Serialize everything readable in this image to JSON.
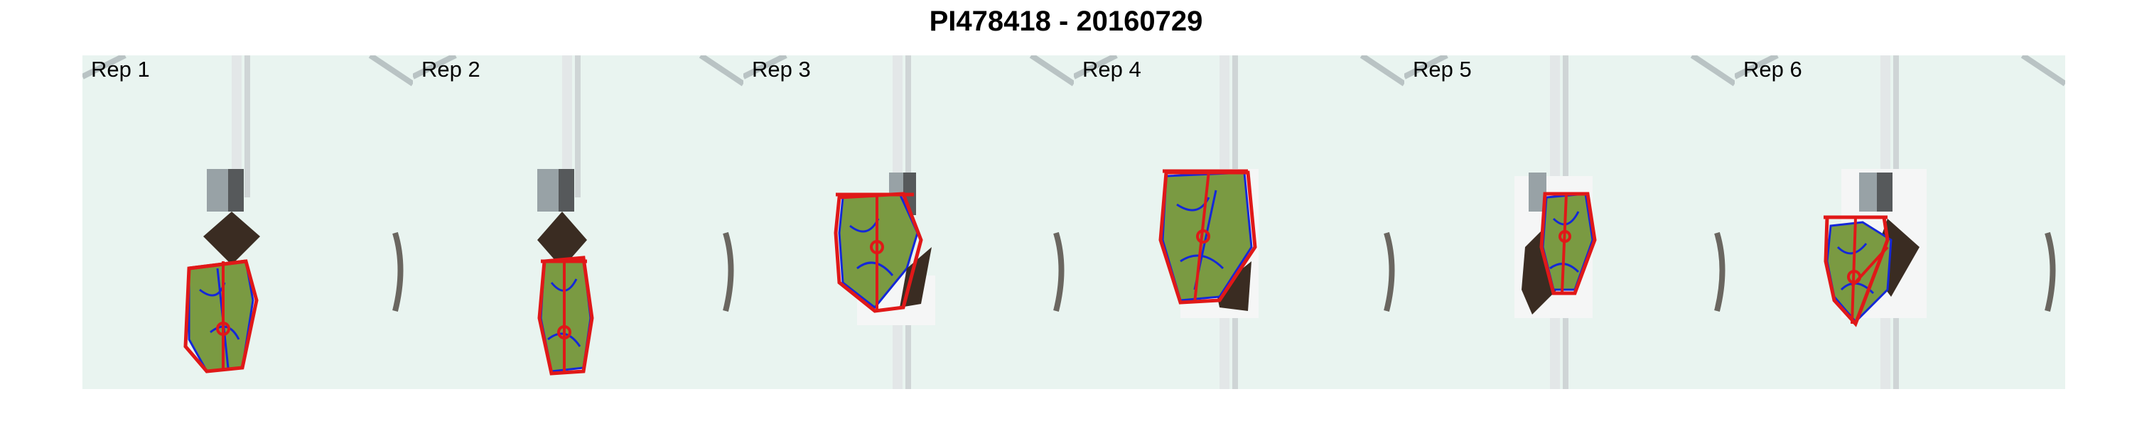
{
  "figure": {
    "title": "PI478418 - 20160729"
  },
  "panels": [
    {
      "label": "Rep 1"
    },
    {
      "label": "Rep 2"
    },
    {
      "label": "Rep 3"
    },
    {
      "label": "Rep 4"
    },
    {
      "label": "Rep 5"
    },
    {
      "label": "Rep 6"
    }
  ],
  "colors": {
    "background": "#e8f4f0",
    "pot_soil": "#3a2c22",
    "plant": "#7a9a42",
    "contour": "#1428d8",
    "hull": "#e01818",
    "rail": "#d8dde0",
    "block": "#8a9094"
  }
}
